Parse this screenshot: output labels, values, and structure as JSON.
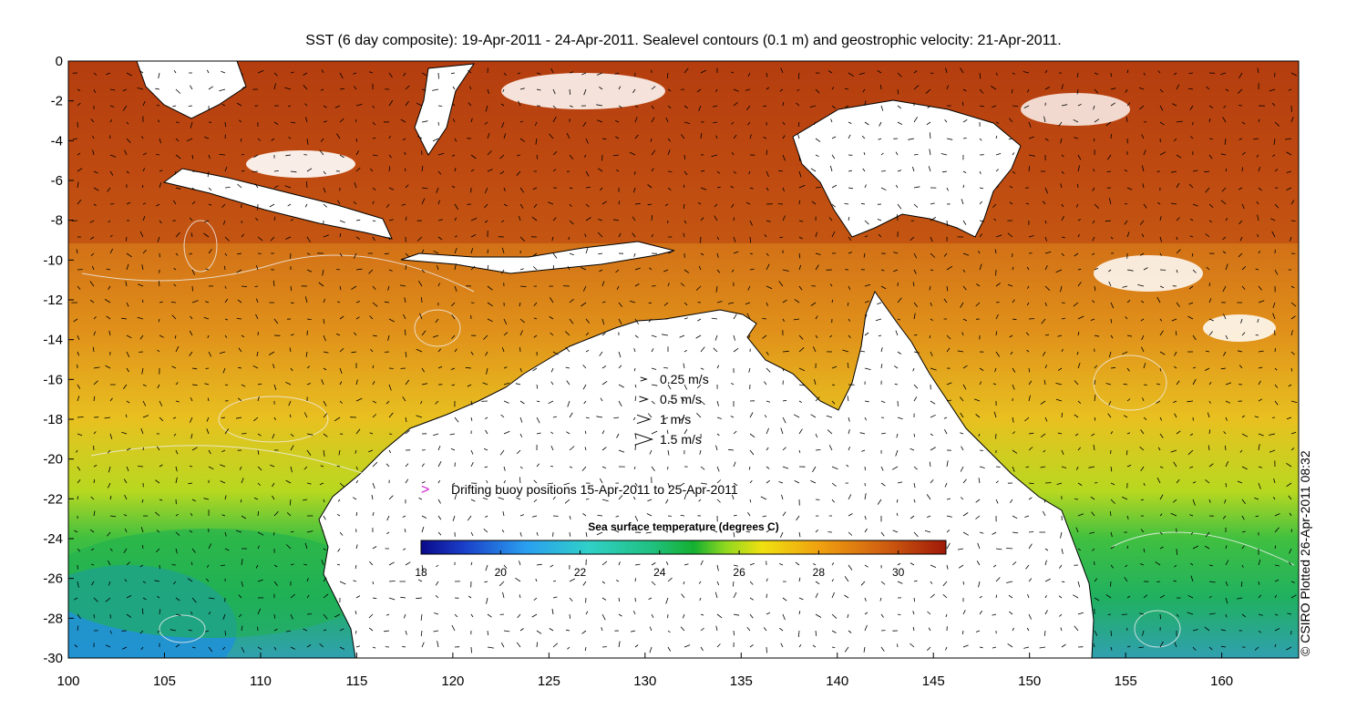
{
  "title": "SST (6 day composite): 19-Apr-2011 - 24-Apr-2011. Sealevel contours (0.1 m) and geostrophic velocity: 21-Apr-2011.",
  "credit": "© CSIRO Plotted 26-Apr-2011 08:32",
  "axes": {
    "x_ticks": [
      "100",
      "105",
      "110",
      "115",
      "120",
      "125",
      "130",
      "135",
      "140",
      "145",
      "150",
      "155",
      "160"
    ],
    "y_ticks": [
      "0",
      "-2",
      "-4",
      "-6",
      "-8",
      "-10",
      "-12",
      "-14",
      "-16",
      "-18",
      "-20",
      "-22",
      "-24",
      "-26",
      "-28",
      "-30"
    ],
    "lon_range": [
      100,
      164
    ],
    "lat_range": [
      -30,
      0
    ]
  },
  "velocity_legend": [
    {
      "label": "0.25 m/s",
      "speed": 0.25
    },
    {
      "label": "0.5 m/s",
      "speed": 0.5
    },
    {
      "label": "1 m/s",
      "speed": 1
    },
    {
      "label": "1.5 m/s",
      "speed": 1.5
    }
  ],
  "buoy_legend": {
    "symbol": ">",
    "label": "Drifting buoy positions 15-Apr-2011 to 25-Apr-2011",
    "color": "#d020d0"
  },
  "colorbar": {
    "title": "Sea surface temperature (degrees C)",
    "ticks": [
      "18",
      "20",
      "22",
      "24",
      "26",
      "28",
      "30"
    ],
    "range": [
      18,
      31.2
    ]
  },
  "colors": {
    "land": "#ffffff",
    "coast": "#000000",
    "contours": "#f0f0f0",
    "arrows": "#000000"
  }
}
